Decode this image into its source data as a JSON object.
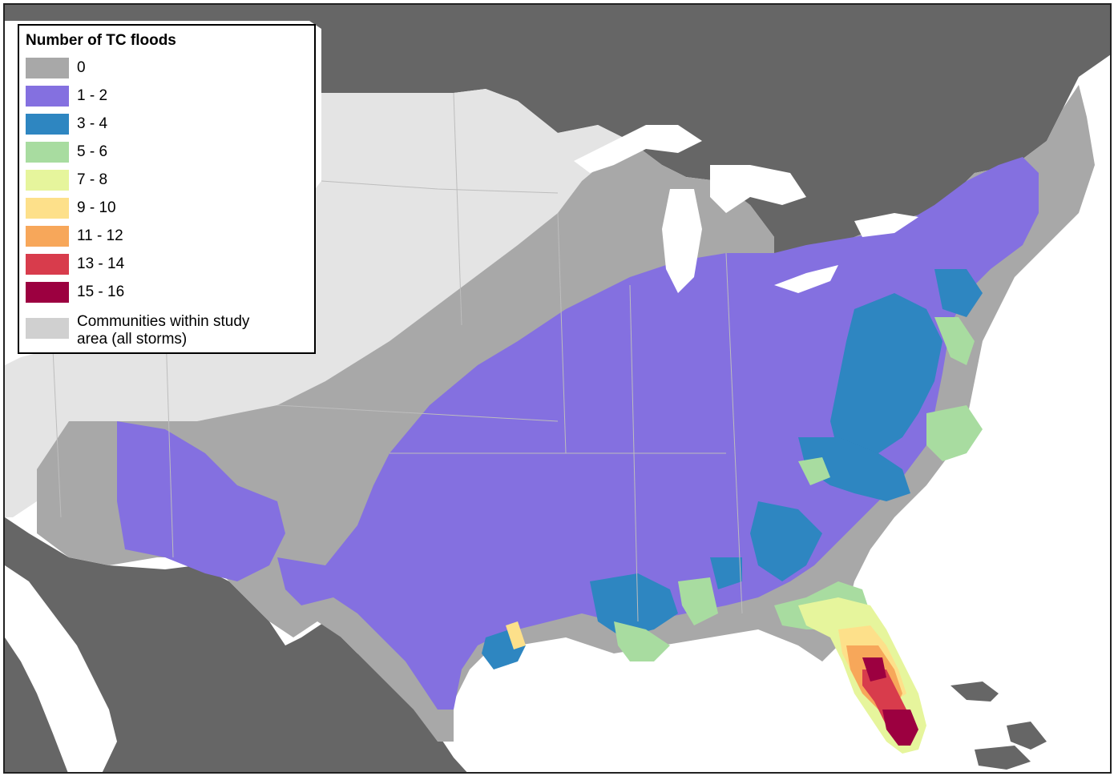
{
  "legend": {
    "title": "Number of TC floods",
    "items": [
      {
        "label": "0",
        "color": "#a8a8a8"
      },
      {
        "label": "1 - 2",
        "color": "#8470e0"
      },
      {
        "label": "3 - 4",
        "color": "#2e86c1"
      },
      {
        "label": "5 - 6",
        "color": "#a8dca0"
      },
      {
        "label": "7 - 8",
        "color": "#e6f59c"
      },
      {
        "label": "9 - 10",
        "color": "#fde08a"
      },
      {
        "label": "11 - 12",
        "color": "#f7a75a"
      },
      {
        "label": "13 - 14",
        "color": "#d83c4c"
      },
      {
        "label": "15 - 16",
        "color": "#9c0040"
      }
    ],
    "study_area": {
      "label_line1": "Communities within study",
      "label_line2": "area (all storms)",
      "color": "#d0d0d0"
    }
  },
  "map": {
    "land_outside_color": "#666666",
    "water_color": "#ffffff",
    "outside_study_color": "#e4e4e4",
    "boundary_color": "#bdbdbd"
  }
}
